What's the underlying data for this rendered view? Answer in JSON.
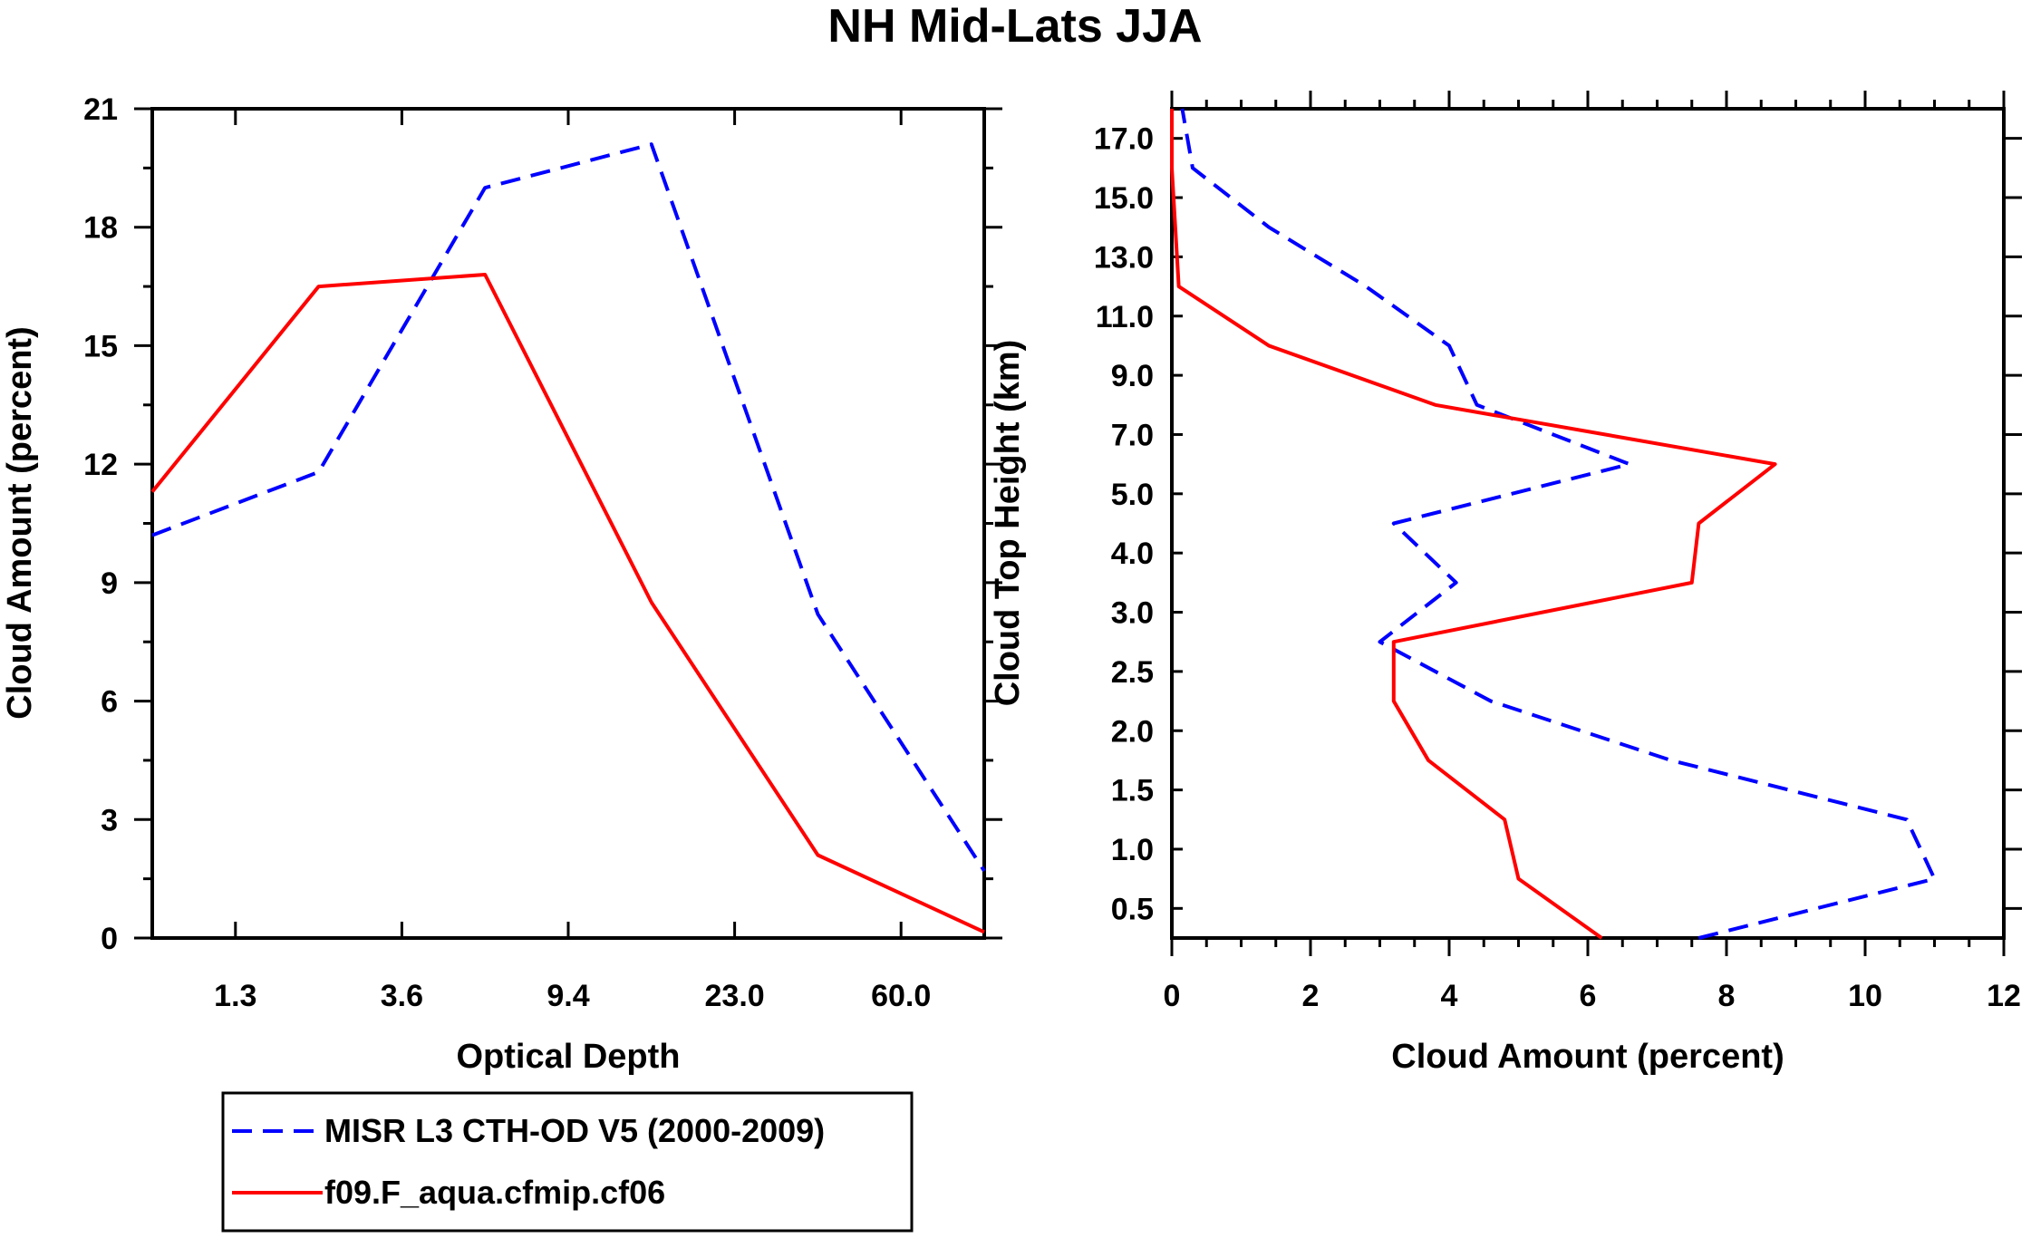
{
  "chart_data": [
    {
      "type": "line",
      "panel": "left",
      "title": "NH Mid-Lats JJA",
      "xlabel": "Optical Depth",
      "ylabel": "Cloud Amount (percent)",
      "ylim": [
        0,
        21
      ],
      "x_tick_labels": [
        "1.3",
        "3.6",
        "9.4",
        "23.0",
        "60.0"
      ],
      "y_tick_labels": [
        "0",
        "3",
        "6",
        "9",
        "12",
        "15",
        "18",
        "21"
      ],
      "x_positions": [
        0,
        1,
        2,
        3,
        4,
        5,
        6
      ],
      "series": [
        {
          "name": "MISR L3 CTH-OD V5 (2000-2009)",
          "color": "#0000ff",
          "dash": true,
          "values": [
            10.2,
            11.8,
            19.0,
            20.1,
            8.2,
            1.7
          ]
        },
        {
          "name": "f09.F_aqua.cfmip.cf06",
          "color": "#ff0000",
          "dash": false,
          "values": [
            11.3,
            16.5,
            16.8,
            8.5,
            2.1,
            0.15
          ]
        }
      ]
    },
    {
      "type": "line",
      "panel": "right",
      "xlabel": "Cloud Amount (percent)",
      "ylabel": "Cloud Top Height (km)",
      "xlim": [
        0,
        12
      ],
      "x_tick_labels": [
        "0",
        "2",
        "4",
        "6",
        "8",
        "10",
        "12"
      ],
      "y_tick_labels": [
        "0.5",
        "1.0",
        "1.5",
        "2.0",
        "2.5",
        "3.0",
        "4.0",
        "5.0",
        "7.0",
        "9.0",
        "11.0",
        "13.0",
        "15.0",
        "17.0"
      ],
      "series": [
        {
          "name": "MISR L3 CTH-OD V5 (2000-2009)",
          "color": "#0000ff",
          "dash": true,
          "values": [
            7.6,
            11.0,
            10.6,
            7.2,
            4.6,
            3.0,
            4.1,
            3.2,
            6.6,
            4.4,
            4.0,
            2.8,
            1.4,
            0.3,
            0.15
          ]
        },
        {
          "name": "f09.F_aqua.cfmip.cf06",
          "color": "#ff0000",
          "dash": false,
          "values": [
            6.2,
            5.0,
            4.8,
            3.7,
            3.2,
            3.2,
            7.5,
            7.6,
            8.7,
            3.8,
            1.4,
            0.1,
            0.05,
            0.0,
            0.0
          ]
        }
      ]
    }
  ]
}
